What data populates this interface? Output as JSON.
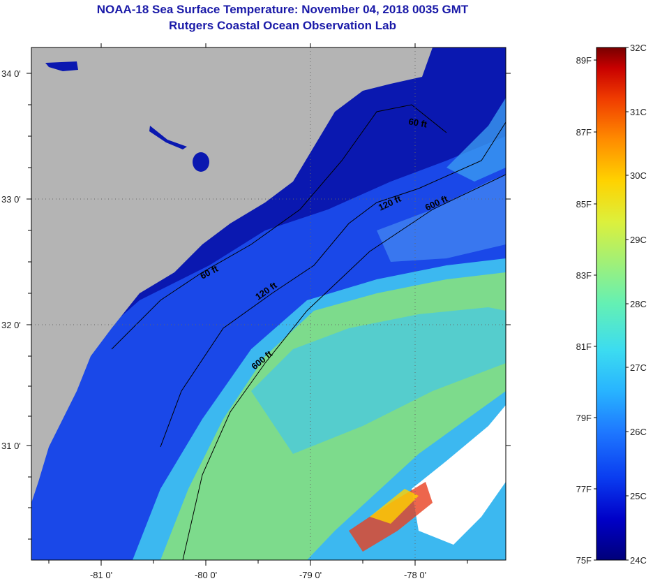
{
  "title": {
    "line1": "NOAA-18 Sea Surface Temperature:  November 04, 2018 0035 GMT",
    "line2": "Rutgers Coastal Ocean Observation Lab"
  },
  "axes": {
    "latitude_labels": [
      "34 0'",
      "33 0'",
      "32 0'",
      "31 0'"
    ],
    "longitude_labels": [
      "-81 0'",
      "-80 0'",
      "-79 0'",
      "-78 0'"
    ]
  },
  "contours": {
    "labels": [
      "60 ft",
      "120 ft",
      "600 ft",
      "60 ft",
      "120 ft",
      "600 ft"
    ]
  },
  "colorbar": {
    "fahrenheit": [
      "89F",
      "87F",
      "85F",
      "83F",
      "81F",
      "79F",
      "77F",
      "75F"
    ],
    "celsius": [
      "32C",
      "31C",
      "30C",
      "29C",
      "28C",
      "27C",
      "26C",
      "25C",
      "24C"
    ],
    "colors": [
      "#00007a",
      "#0000c8",
      "#0a3cf0",
      "#1e78ff",
      "#28b4ff",
      "#3cdcf0",
      "#64f0b4",
      "#a0f078",
      "#dcf03c",
      "#ffd200",
      "#ff8c00",
      "#f03c00",
      "#c80000",
      "#780000"
    ]
  },
  "colors": {
    "land": "#b4b4b4",
    "deep_ocean": "#0a18b0",
    "shelf_ocean": "#1a4ae0",
    "warm_water": "#8ee070",
    "cloud": "#ffffff"
  }
}
